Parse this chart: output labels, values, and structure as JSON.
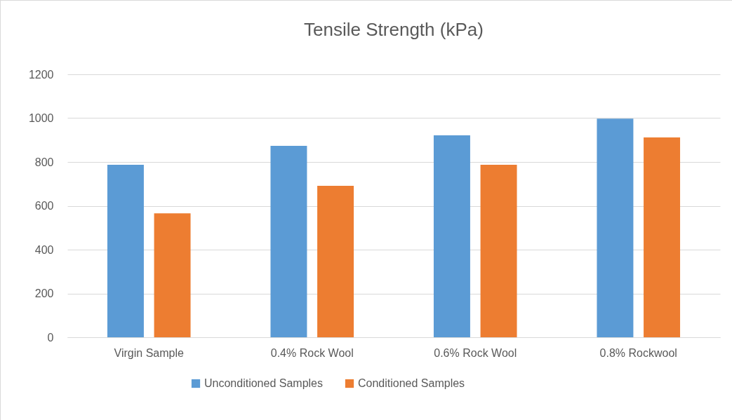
{
  "chart_data": {
    "type": "bar",
    "title": "Tensile Strength (kPa)",
    "categories": [
      "Virgin Sample",
      "0.4% Rock Wool",
      "0.6% Rock Wool",
      "0.8% Rockwool"
    ],
    "series": [
      {
        "name": "Unconditioned Samples",
        "color": "#5b9bd5",
        "values": [
          787,
          874,
          922,
          998
        ]
      },
      {
        "name": "Conditioned Samples",
        "color": "#ed7d31",
        "values": [
          566,
          691,
          787,
          912
        ]
      }
    ],
    "ylim": [
      0,
      1200
    ],
    "yticks": [
      0,
      200,
      400,
      600,
      800,
      1000,
      1200
    ],
    "grid": "y",
    "legend": "bottom"
  }
}
